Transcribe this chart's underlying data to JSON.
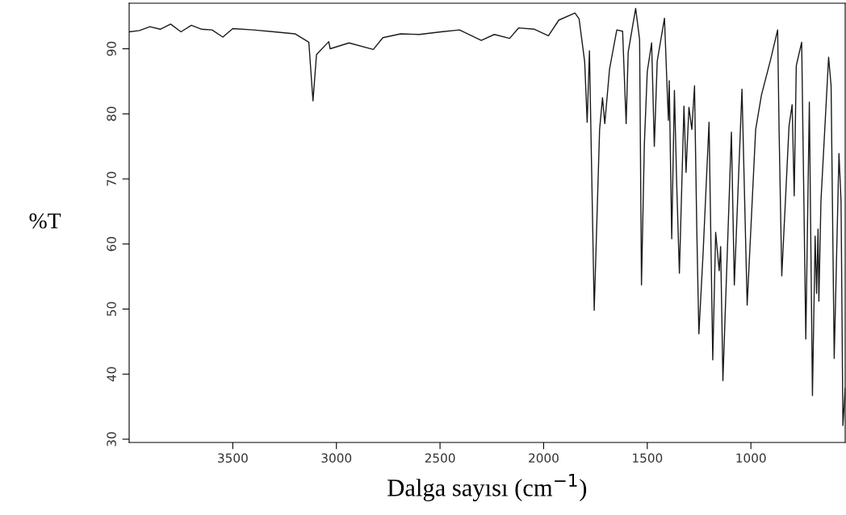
{
  "chart_data": {
    "type": "line",
    "xlabel": "Dalga sayısı (cm$^{−1}$)",
    "ylabel": "%T",
    "xlim": [
      4000,
      545
    ],
    "ylim": [
      29.5,
      97
    ],
    "xticks": [
      3500,
      3000,
      2500,
      2000,
      1500,
      1000
    ],
    "yticks": [
      30,
      40,
      50,
      60,
      70,
      80,
      90
    ],
    "grid": false,
    "legend": false,
    "series": [
      {
        "color": "#1a1a1a",
        "x": [
          4000,
          3950,
          3900,
          3850,
          3800,
          3750,
          3700,
          3650,
          3600,
          3548,
          3500,
          3400,
          3300,
          3200,
          3133,
          3113,
          3096,
          3037,
          3030,
          2939,
          2822,
          2776,
          2690,
          2600,
          2495,
          2406,
          2301,
          2238,
          2164,
          2121,
          2044,
          1977,
          1927,
          1849,
          1829,
          1802,
          1790,
          1779,
          1756,
          1730,
          1716,
          1705,
          1682,
          1647,
          1619,
          1602,
          1592,
          1570,
          1556,
          1537,
          1528,
          1514,
          1500,
          1479,
          1466,
          1452,
          1417,
          1403,
          1398,
          1394,
          1382,
          1369,
          1358,
          1345,
          1323,
          1313,
          1299,
          1285,
          1272,
          1261,
          1251,
          1230,
          1202,
          1184,
          1170,
          1153,
          1146,
          1135,
          1094,
          1080,
          1043,
          1018,
          977,
          949,
          906,
          871,
          864,
          851,
          816,
          801,
          791,
          781,
          755,
          735,
          718,
          703,
          690,
          683,
          676,
          672,
          662,
          625,
          613,
          598,
          575,
          565,
          556,
          545
        ],
        "values": [
          92.6,
          92.8,
          93.4,
          93.0,
          93.8,
          92.6,
          93.6,
          93.0,
          92.9,
          91.8,
          93.1,
          92.9,
          92.6,
          92.3,
          91.0,
          82.0,
          89.1,
          91.1,
          90.0,
          90.9,
          89.9,
          91.7,
          92.3,
          92.2,
          92.6,
          92.9,
          91.3,
          92.2,
          91.6,
          93.2,
          93.0,
          92.0,
          94.4,
          95.5,
          94.6,
          88.0,
          78.7,
          89.7,
          49.8,
          77.6,
          82.5,
          78.5,
          86.9,
          92.9,
          92.7,
          78.5,
          89.5,
          93.6,
          96.2,
          91.4,
          53.7,
          75.4,
          86.5,
          90.9,
          75.0,
          88.1,
          94.7,
          82.9,
          79.0,
          85.1,
          60.8,
          83.6,
          69.2,
          55.5,
          81.2,
          71.0,
          81.0,
          77.6,
          84.3,
          62.1,
          46.2,
          59.0,
          78.7,
          42.2,
          61.8,
          55.9,
          59.6,
          39.0,
          77.2,
          53.7,
          83.8,
          50.6,
          77.6,
          82.9,
          88.2,
          92.9,
          77.6,
          55.1,
          78.1,
          81.4,
          67.4,
          87.4,
          91.0,
          45.4,
          81.8,
          36.7,
          61.2,
          52.4,
          62.3,
          51.2,
          66.6,
          88.7,
          84.3,
          42.4,
          73.9,
          66.6,
          32.1,
          37.8
        ]
      }
    ]
  }
}
